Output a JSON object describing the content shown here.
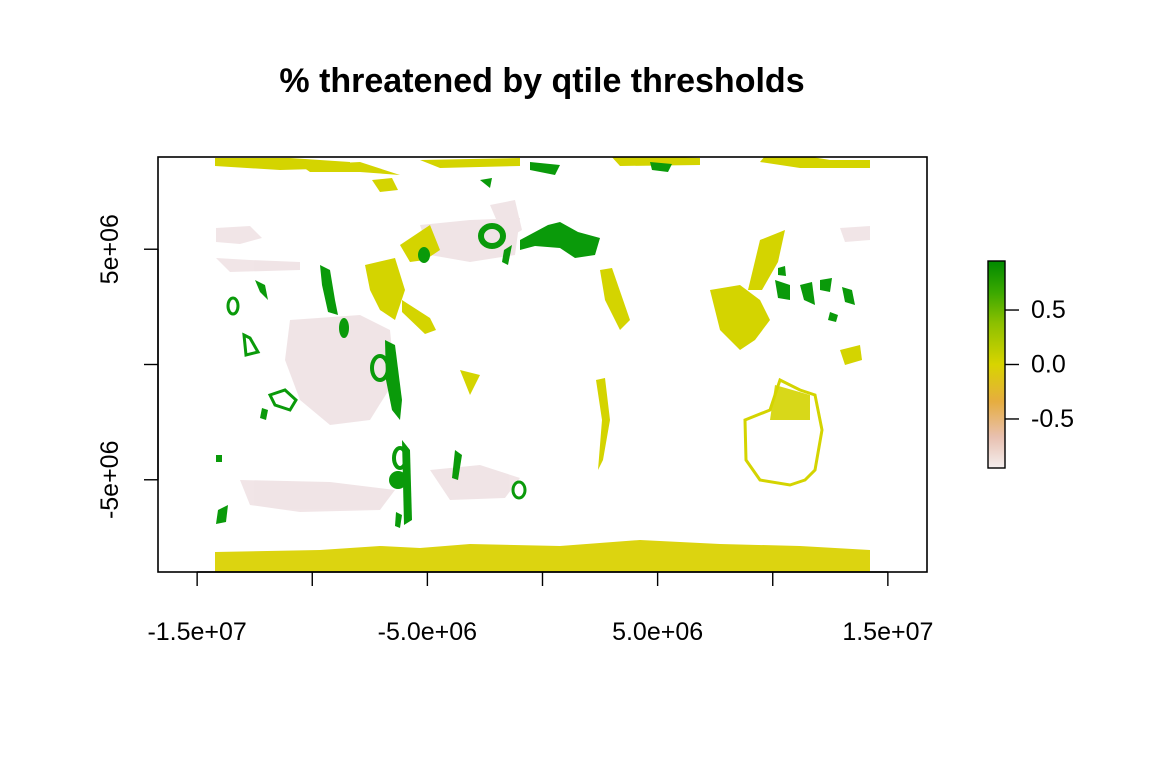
{
  "title": "% threatened by qtile thresholds",
  "x_axis": {
    "ticks": [
      -15000000.0,
      -10000000.0,
      -5000000.0,
      0,
      5000000.0,
      10000000.0,
      15000000.0
    ],
    "tick_labels": [
      "-1.5e+07",
      "",
      "-5.0e+06",
      "",
      "5.0e+06",
      "",
      "1.5e+07"
    ],
    "range": [
      -16700000,
      16700000
    ]
  },
  "y_axis": {
    "ticks": [
      5000000.0,
      0,
      -5000000.0
    ],
    "tick_labels": [
      "5e+06",
      "",
      "-5e+06"
    ],
    "range": [
      -9000000,
      9000000
    ]
  },
  "legend": {
    "ticks": [
      0.5,
      0.0,
      -0.5
    ],
    "tick_labels": [
      "0.5",
      "0.0",
      "-0.5"
    ],
    "range": [
      -0.95,
      0.95
    ],
    "colors": {
      "high": "#008a00",
      "mid_high": "#3aa800",
      "mid": "#d8d800",
      "mid_low": "#e8b040",
      "low": "#f2e4e4"
    }
  },
  "map_colors": {
    "green": "#0a9a0a",
    "yellow": "#d4d400",
    "antarctica": "#dcd410",
    "pink": "#efe2e4"
  }
}
